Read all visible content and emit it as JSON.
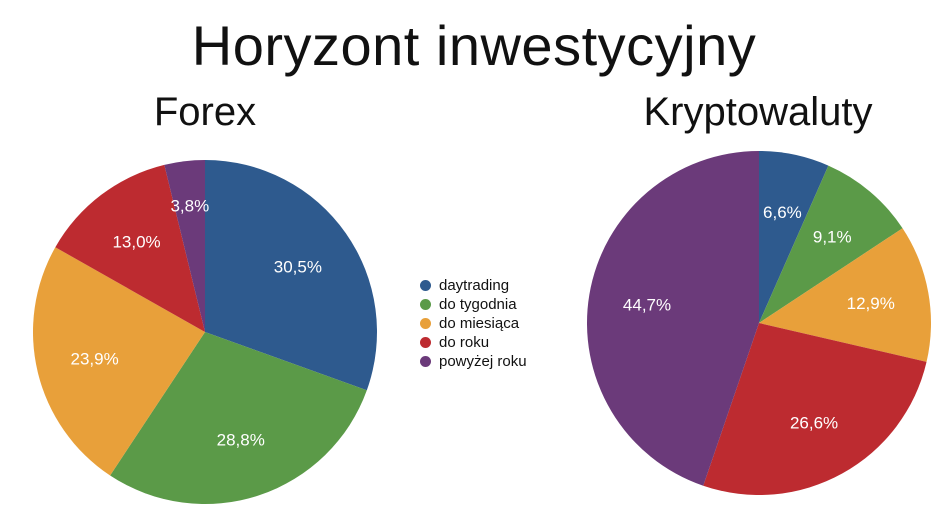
{
  "title": "Horyzont inwestycyjny",
  "legend": [
    {
      "label": "daytrading",
      "color": "#2e5a8e"
    },
    {
      "label": "do tygodnia",
      "color": "#5b9a48"
    },
    {
      "label": "do miesiąca",
      "color": "#e8a03a"
    },
    {
      "label": "do roku",
      "color": "#bd2b30"
    },
    {
      "label": "powyżej roku",
      "color": "#6b3a7a"
    }
  ],
  "chart_data": [
    {
      "type": "pie",
      "title": "Forex",
      "categories": [
        "daytrading",
        "do tygodnia",
        "do miesiąca",
        "do roku",
        "powyżej roku"
      ],
      "values": [
        30.5,
        28.8,
        23.9,
        13.0,
        3.8
      ],
      "labels": [
        "30,5%",
        "28,8%",
        "23,9%",
        "13,0%",
        "3,8%"
      ],
      "colors": [
        "#2e5a8e",
        "#5b9a48",
        "#e8a03a",
        "#bd2b30",
        "#6b3a7a"
      ]
    },
    {
      "type": "pie",
      "title": "Kryptowaluty",
      "categories": [
        "daytrading",
        "do tygodnia",
        "do miesiąca",
        "do roku",
        "powyżej roku"
      ],
      "values": [
        6.6,
        9.1,
        12.9,
        26.6,
        44.7
      ],
      "labels": [
        "6,6%",
        "9,1%",
        "12,9%",
        "26,6%",
        "44,7%"
      ],
      "colors": [
        "#2e5a8e",
        "#5b9a48",
        "#e8a03a",
        "#bd2b30",
        "#6b3a7a"
      ]
    }
  ]
}
